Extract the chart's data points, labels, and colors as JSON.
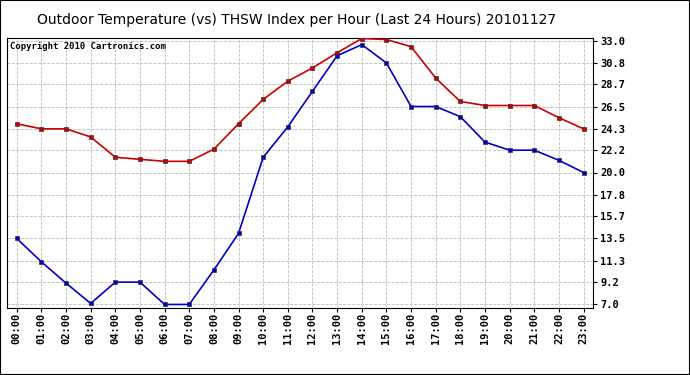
{
  "title": "Outdoor Temperature (vs) THSW Index per Hour (Last 24 Hours) 20101127",
  "copyright_text": "Copyright 2010 Cartronics.com",
  "x_labels": [
    "00:00",
    "01:00",
    "02:00",
    "03:00",
    "04:00",
    "05:00",
    "06:00",
    "07:00",
    "08:00",
    "09:00",
    "10:00",
    "11:00",
    "12:00",
    "13:00",
    "14:00",
    "15:00",
    "16:00",
    "17:00",
    "18:00",
    "19:00",
    "20:00",
    "21:00",
    "22:00",
    "23:00"
  ],
  "red_data": [
    24.8,
    24.3,
    24.3,
    23.5,
    21.5,
    21.3,
    21.1,
    21.1,
    22.3,
    24.8,
    27.2,
    29.0,
    30.3,
    31.8,
    33.2,
    33.1,
    32.4,
    29.3,
    27.0,
    26.6,
    26.6,
    26.6,
    25.4,
    24.3
  ],
  "blue_data": [
    13.5,
    11.2,
    9.1,
    7.1,
    9.2,
    9.2,
    7.0,
    7.0,
    10.4,
    14.0,
    21.5,
    24.5,
    28.0,
    31.5,
    32.6,
    30.8,
    26.5,
    26.5,
    25.5,
    23.0,
    22.2,
    22.2,
    21.2,
    20.0
  ],
  "y_ticks": [
    7.0,
    9.2,
    11.3,
    13.5,
    15.7,
    17.8,
    20.0,
    22.2,
    24.3,
    26.5,
    28.7,
    30.8,
    33.0
  ],
  "y_min": 7.0,
  "y_max": 33.0,
  "red_color": "#cc0000",
  "blue_color": "#0000cc",
  "bg_color": "#ffffff",
  "plot_bg_color": "#ffffff",
  "grid_color": "#bbbbbb",
  "title_fontsize": 10,
  "copyright_fontsize": 6.5,
  "tick_fontsize": 7.5,
  "marker_size": 3.5,
  "line_width": 1.2
}
